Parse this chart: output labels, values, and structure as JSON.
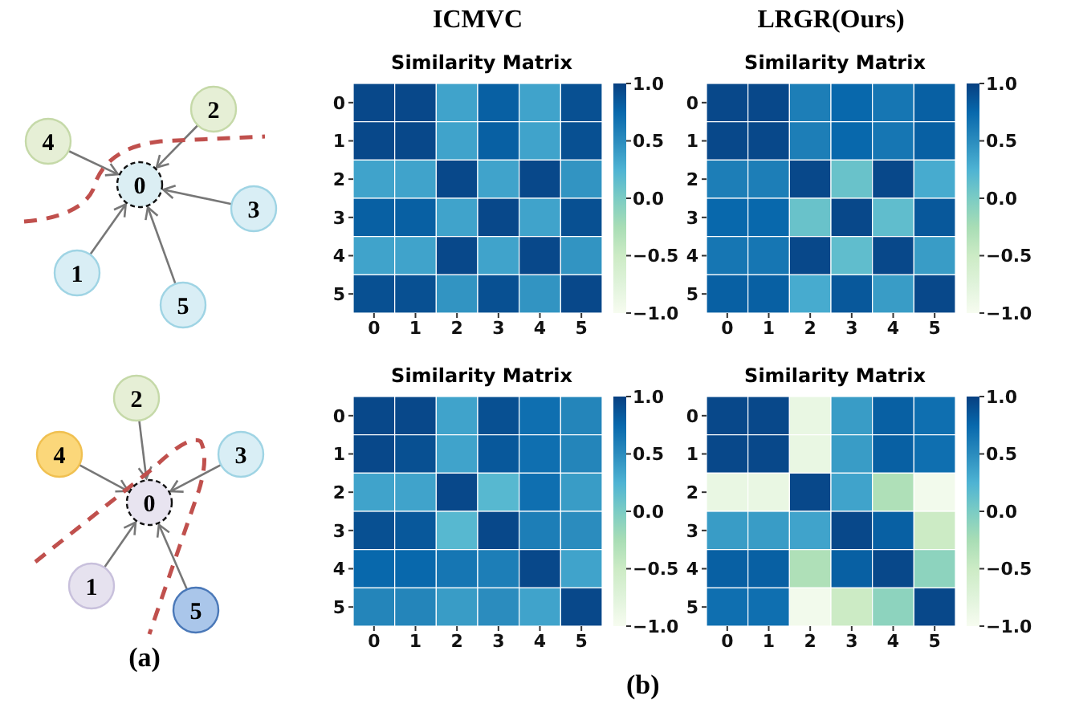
{
  "chart_data": [
    {
      "type": "other",
      "annotations": [
        "4",
        "2",
        "0",
        "3",
        "1",
        "5",
        "2",
        "4",
        "0",
        "3",
        "1",
        "5",
        "(a)"
      ]
    },
    {
      "type": "heatmap",
      "title": "Similarity Matrix",
      "subtitle": "ICMVC",
      "categories": [
        "0",
        "1",
        "2",
        "3",
        "4",
        "5"
      ],
      "y_categories": [
        "0",
        "1",
        "2",
        "3",
        "4",
        "5"
      ],
      "clim": [
        -1,
        1
      ],
      "cticks": [
        {
          "value": -1,
          "label": "−1.0"
        },
        {
          "value": -0.5,
          "label": "−0.5"
        },
        {
          "value": 0,
          "label": "0.0"
        },
        {
          "value": 0.5,
          "label": "0.5"
        },
        {
          "value": 1,
          "label": "1.0"
        }
      ],
      "cells": [
        [
          0.95,
          0.95,
          0.35,
          0.8,
          0.35,
          0.9
        ],
        [
          0.95,
          0.95,
          0.35,
          0.8,
          0.35,
          0.9
        ],
        [
          0.35,
          0.35,
          0.95,
          0.35,
          0.95,
          0.45
        ],
        [
          0.8,
          0.8,
          0.35,
          0.95,
          0.35,
          0.9
        ],
        [
          0.35,
          0.35,
          0.95,
          0.35,
          0.95,
          0.45
        ],
        [
          0.9,
          0.9,
          0.45,
          0.9,
          0.45,
          0.95
        ]
      ]
    },
    {
      "type": "heatmap",
      "title": "Similarity Matrix",
      "subtitle": "LRGR(Ours)",
      "categories": [
        "0",
        "1",
        "2",
        "3",
        "4",
        "5"
      ],
      "y_categories": [
        "0",
        "1",
        "2",
        "3",
        "4",
        "5"
      ],
      "clim": [
        -1,
        1
      ],
      "cticks": [
        {
          "value": -1,
          "label": "−1.0"
        },
        {
          "value": -0.5,
          "label": "−0.5"
        },
        {
          "value": 0,
          "label": "0.0"
        },
        {
          "value": 0.5,
          "label": "0.5"
        },
        {
          "value": 1,
          "label": "1.0"
        }
      ],
      "cells": [
        [
          0.95,
          0.95,
          0.6,
          0.75,
          0.65,
          0.8
        ],
        [
          0.95,
          0.95,
          0.6,
          0.75,
          0.65,
          0.8
        ],
        [
          0.6,
          0.6,
          0.95,
          0.1,
          0.95,
          0.3
        ],
        [
          0.75,
          0.75,
          0.1,
          0.95,
          0.15,
          0.85
        ],
        [
          0.65,
          0.65,
          0.95,
          0.15,
          0.95,
          0.4
        ],
        [
          0.8,
          0.8,
          0.3,
          0.85,
          0.4,
          0.95
        ]
      ]
    },
    {
      "type": "heatmap",
      "title": "Similarity Matrix",
      "categories": [
        "0",
        "1",
        "2",
        "3",
        "4",
        "5"
      ],
      "y_categories": [
        "0",
        "1",
        "2",
        "3",
        "4",
        "5"
      ],
      "clim": [
        -1,
        1
      ],
      "cticks": [
        {
          "value": -1,
          "label": "−1.0"
        },
        {
          "value": -0.5,
          "label": "−0.5"
        },
        {
          "value": 0,
          "label": "0.0"
        },
        {
          "value": 0.5,
          "label": "0.5"
        },
        {
          "value": 1,
          "label": "1.0"
        }
      ],
      "annotations": [
        "(b)"
      ],
      "cells": [
        [
          0.95,
          0.95,
          0.35,
          0.9,
          0.7,
          0.55
        ],
        [
          0.95,
          0.9,
          0.35,
          0.85,
          0.7,
          0.55
        ],
        [
          0.35,
          0.35,
          0.95,
          0.2,
          0.7,
          0.4
        ],
        [
          0.9,
          0.85,
          0.2,
          0.95,
          0.6,
          0.5
        ],
        [
          0.75,
          0.75,
          0.65,
          0.6,
          0.95,
          0.35
        ],
        [
          0.55,
          0.55,
          0.4,
          0.5,
          0.35,
          0.95
        ]
      ]
    },
    {
      "type": "heatmap",
      "title": "Similarity Matrix",
      "categories": [
        "0",
        "1",
        "2",
        "3",
        "4",
        "5"
      ],
      "y_categories": [
        "0",
        "1",
        "2",
        "3",
        "4",
        "5"
      ],
      "clim": [
        -1,
        1
      ],
      "cticks": [
        {
          "value": -1,
          "label": "−1.0"
        },
        {
          "value": -0.5,
          "label": "−0.5"
        },
        {
          "value": 0,
          "label": "0.0"
        },
        {
          "value": 0.5,
          "label": "0.5"
        },
        {
          "value": 1,
          "label": "1.0"
        }
      ],
      "cells": [
        [
          0.95,
          0.95,
          -0.85,
          0.4,
          0.8,
          0.7
        ],
        [
          0.95,
          0.95,
          -0.85,
          0.4,
          0.8,
          0.7
        ],
        [
          -0.85,
          -0.85,
          0.95,
          0.35,
          -0.3,
          -0.95
        ],
        [
          0.4,
          0.4,
          0.35,
          0.95,
          0.8,
          -0.5
        ],
        [
          0.8,
          0.8,
          -0.3,
          0.8,
          0.95,
          -0.1
        ],
        [
          0.7,
          0.7,
          -0.95,
          -0.5,
          -0.1,
          0.95
        ]
      ]
    }
  ]
}
